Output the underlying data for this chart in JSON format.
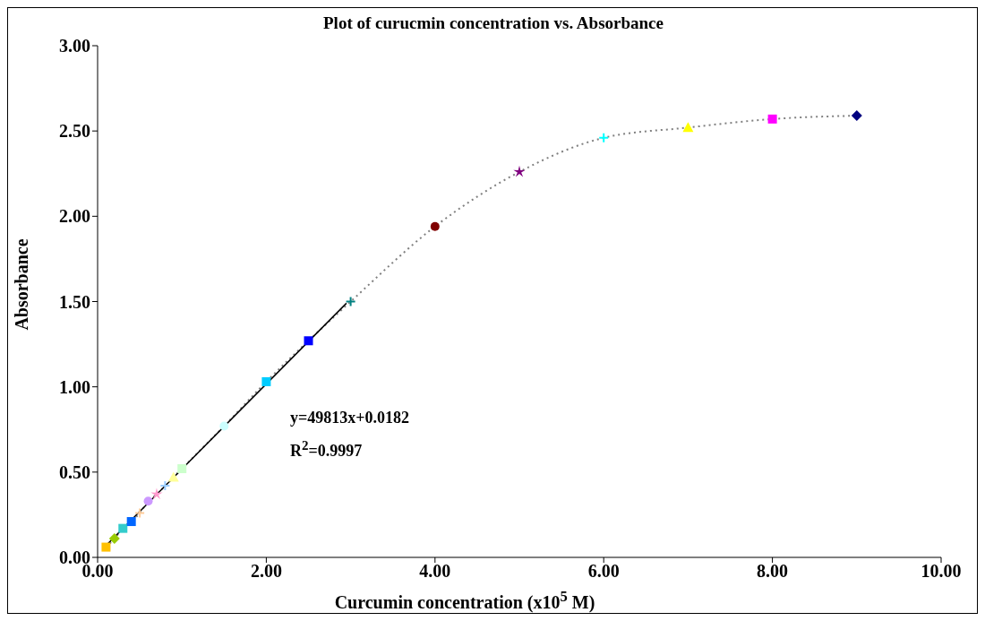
{
  "chart_data": {
    "type": "scatter",
    "title": "Plot of curucmin concentration vs. Absorbance",
    "xlabel": "Curcumin concentration (x10$^{5}$ M)",
    "ylabel": "Absorbance",
    "xlim": [
      0,
      10
    ],
    "ylim": [
      0,
      3
    ],
    "xticks": [
      {
        "value": 0,
        "label": "0.00"
      },
      {
        "value": 2,
        "label": "2.00"
      },
      {
        "value": 4,
        "label": "4.00"
      },
      {
        "value": 6,
        "label": "6.00"
      },
      {
        "value": 8,
        "label": "8.00"
      },
      {
        "value": 10,
        "label": "10.00"
      }
    ],
    "yticks": [
      {
        "value": 0,
        "label": "0.00"
      },
      {
        "value": 0.5,
        "label": "0.50"
      },
      {
        "value": 1,
        "label": "1.00"
      },
      {
        "value": 1.5,
        "label": "1.50"
      },
      {
        "value": 2,
        "label": "2.00"
      },
      {
        "value": 2.5,
        "label": "2.50"
      },
      {
        "value": 3,
        "label": "3.00"
      }
    ],
    "grid": false,
    "legend": false,
    "annotations": [
      "y=49813x+0.0182",
      "R$^{2}$=0.9997"
    ],
    "series": [
      {
        "type": "line",
        "color": "#808080",
        "line_style": "dotted",
        "marker": "none",
        "x": [
          0.1,
          0.2,
          0.3,
          0.4,
          0.5,
          0.6,
          0.7,
          0.8,
          0.9,
          1.0,
          1.5,
          2.0,
          2.5,
          3.0,
          4.0,
          5.0,
          6.0,
          7.0,
          8.0,
          9.0
        ],
        "values": [
          0.06,
          0.11,
          0.17,
          0.21,
          0.26,
          0.33,
          0.37,
          0.42,
          0.47,
          0.52,
          0.77,
          1.03,
          1.27,
          1.5,
          1.94,
          2.26,
          2.46,
          2.52,
          2.57,
          2.59
        ]
      },
      {
        "type": "line",
        "color": "#000000",
        "line_style": "solid",
        "marker": "none",
        "x": [
          0.1,
          2.95
        ],
        "values": [
          0.07,
          1.49
        ]
      },
      {
        "color": "#ffc000",
        "marker": "square",
        "x": [
          0.1
        ],
        "values": [
          0.06
        ]
      },
      {
        "color": "#99cc00",
        "marker": "diamond",
        "x": [
          0.2
        ],
        "values": [
          0.11
        ]
      },
      {
        "color": "#33cccc",
        "marker": "square",
        "x": [
          0.3
        ],
        "values": [
          0.17
        ]
      },
      {
        "color": "#0066ff",
        "marker": "square",
        "x": [
          0.4
        ],
        "values": [
          0.21
        ]
      },
      {
        "color": "#ffcc99",
        "marker": "cross",
        "x": [
          0.5
        ],
        "values": [
          0.26
        ]
      },
      {
        "color": "#cc99ff",
        "marker": "circle",
        "x": [
          0.6
        ],
        "values": [
          0.33
        ]
      },
      {
        "color": "#ff99cc",
        "marker": "star",
        "x": [
          0.7
        ],
        "values": [
          0.37
        ]
      },
      {
        "color": "#99ccff",
        "marker": "cross",
        "x": [
          0.8
        ],
        "values": [
          0.42
        ]
      },
      {
        "color": "#ffff99",
        "marker": "triangle",
        "x": [
          0.9
        ],
        "values": [
          0.47
        ]
      },
      {
        "color": "#ccffcc",
        "marker": "square",
        "x": [
          1.0
        ],
        "values": [
          0.52
        ]
      },
      {
        "color": "#ccffff",
        "marker": "circle",
        "x": [
          1.5
        ],
        "values": [
          0.77
        ]
      },
      {
        "color": "#00ccff",
        "marker": "square",
        "x": [
          2.0
        ],
        "values": [
          1.03
        ]
      },
      {
        "color": "#0000ff",
        "marker": "square",
        "x": [
          2.5
        ],
        "values": [
          1.27
        ]
      },
      {
        "color": "#008080",
        "marker": "cross",
        "x": [
          3.0
        ],
        "values": [
          1.5
        ]
      },
      {
        "color": "#800000",
        "marker": "circle",
        "x": [
          4.0
        ],
        "values": [
          1.94
        ]
      },
      {
        "color": "#800080",
        "marker": "star",
        "x": [
          5.0
        ],
        "values": [
          2.26
        ]
      },
      {
        "color": "#00ffff",
        "marker": "cross",
        "x": [
          6.0
        ],
        "values": [
          2.46
        ]
      },
      {
        "color": "#ffff00",
        "marker": "triangle",
        "x": [
          7.0
        ],
        "values": [
          2.52
        ]
      },
      {
        "color": "#ff00ff",
        "marker": "square",
        "x": [
          8.0
        ],
        "values": [
          2.57
        ]
      },
      {
        "color": "#000080",
        "marker": "diamond",
        "x": [
          9.0
        ],
        "values": [
          2.59
        ]
      }
    ]
  }
}
